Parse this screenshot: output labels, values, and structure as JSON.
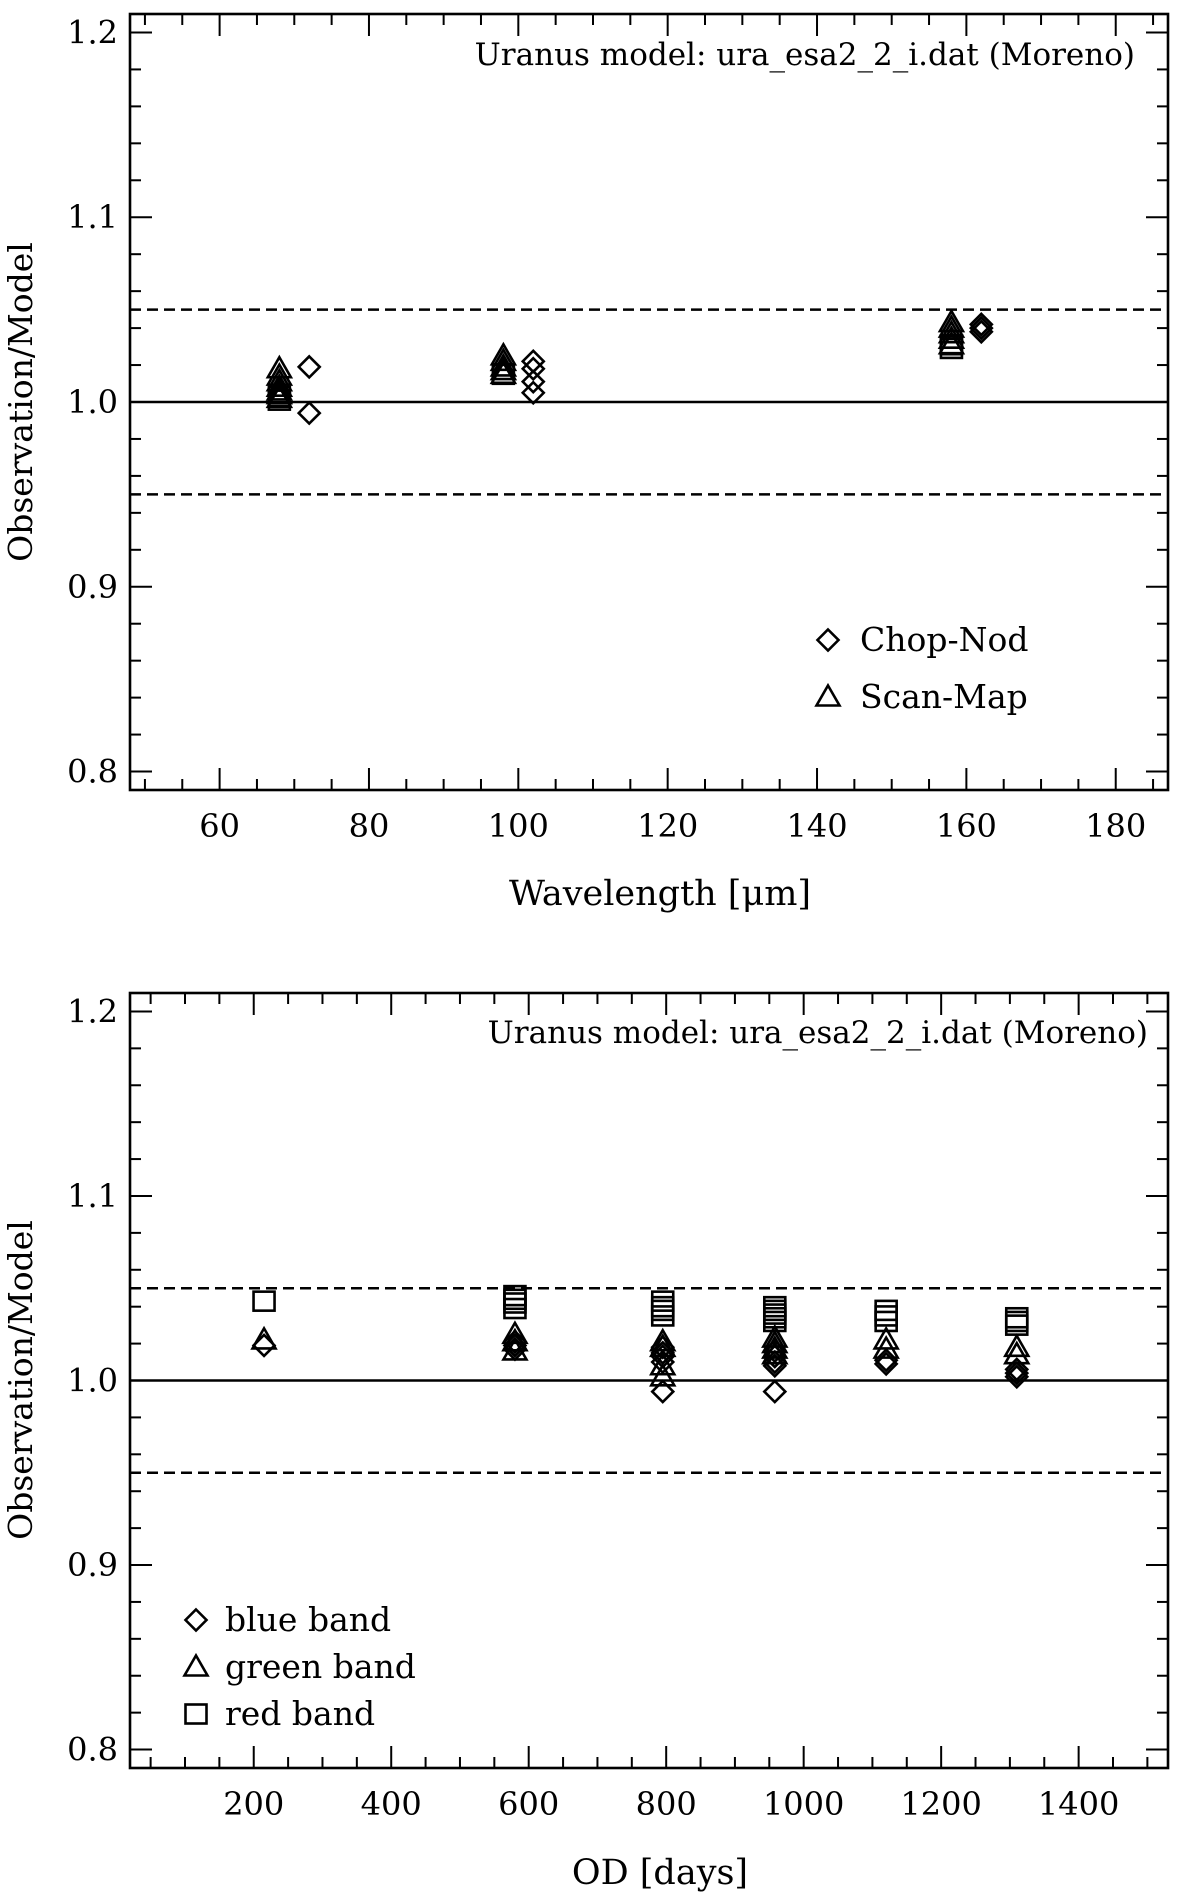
{
  "chart_data": [
    {
      "type": "scatter",
      "annotation": "Uranus model: ura_esa2_2_i.dat (Moreno)",
      "xlabel": "Wavelength [μm]",
      "ylabel": "Observation/Model",
      "xlim": [
        48,
        187
      ],
      "ylim": [
        0.79,
        1.21
      ],
      "xticks": [
        60,
        80,
        100,
        120,
        140,
        160,
        180
      ],
      "xtick_labels": [
        "60",
        "80",
        "100",
        "120",
        "140",
        "160",
        "180"
      ],
      "yticks": [
        0.8,
        0.9,
        1.0,
        1.1,
        1.2
      ],
      "ytick_labels": [
        "0.8",
        "0.9",
        "1.0",
        "1.1",
        "1.2"
      ],
      "hlines": [
        {
          "y": 1.0,
          "style": "solid"
        },
        {
          "y": 1.05,
          "style": "dashed"
        },
        {
          "y": 0.95,
          "style": "dashed"
        }
      ],
      "legend": {
        "placement": "lower-right",
        "entries": [
          {
            "label": "Chop-Nod",
            "marker": "diamond"
          },
          {
            "label": "Scan-Map",
            "marker": "triangle"
          }
        ]
      },
      "series": [
        {
          "name": "Chop-Nod",
          "marker": "diamond",
          "x": [
            72,
            72,
            102,
            102,
            102,
            102,
            162,
            162,
            162
          ],
          "y": [
            1.019,
            0.994,
            1.022,
            1.018,
            1.011,
            1.005,
            1.042,
            1.04,
            1.038
          ]
        },
        {
          "name": "Scan-Map",
          "marker": "triangle",
          "x": [
            68,
            68,
            68,
            68,
            68,
            68,
            68,
            98,
            98,
            98,
            98,
            98,
            158,
            158,
            158,
            158,
            158
          ],
          "y": [
            1.018,
            1.014,
            1.011,
            1.008,
            1.006,
            1.004,
            1.002,
            1.025,
            1.022,
            1.019,
            1.017,
            1.015,
            1.043,
            1.04,
            1.037,
            1.034,
            1.031
          ]
        },
        {
          "name": "",
          "marker": "square",
          "x": [
            68,
            68,
            98,
            158,
            158
          ],
          "y": [
            1.001,
            1.003,
            1.015,
            1.029,
            1.031
          ]
        }
      ]
    },
    {
      "type": "scatter",
      "annotation": "Uranus model: ura_esa2_2_i.dat (Moreno)",
      "xlabel": "OD [days]",
      "ylabel": "Observation/Model",
      "xlim": [
        20,
        1530
      ],
      "ylim": [
        0.79,
        1.21
      ],
      "xticks": [
        200,
        400,
        600,
        800,
        1000,
        1200,
        1400
      ],
      "xtick_labels": [
        "200",
        "400",
        "600",
        "800",
        "1000",
        "1200",
        "1400"
      ],
      "yticks": [
        0.8,
        0.9,
        1.0,
        1.1,
        1.2
      ],
      "ytick_labels": [
        "0.8",
        "0.9",
        "1.0",
        "1.1",
        "1.2"
      ],
      "hlines": [
        {
          "y": 1.0,
          "style": "solid"
        },
        {
          "y": 1.05,
          "style": "dashed"
        },
        {
          "y": 0.95,
          "style": "dashed"
        }
      ],
      "legend": {
        "placement": "lower-left",
        "entries": [
          {
            "label": "blue band",
            "marker": "diamond"
          },
          {
            "label": "green band",
            "marker": "triangle"
          },
          {
            "label": "red band",
            "marker": "square"
          }
        ]
      },
      "series": [
        {
          "name": "blue band",
          "marker": "diamond",
          "x": [
            215,
            580,
            580,
            580,
            795,
            795,
            795,
            795,
            795,
            958,
            958,
            958,
            958,
            958,
            1120,
            1120,
            1310,
            1310,
            1310
          ],
          "y": [
            1.019,
            1.021,
            1.019,
            1.017,
            1.018,
            1.015,
            1.013,
            1.01,
            0.994,
            1.016,
            1.013,
            1.01,
            1.008,
            0.994,
            1.011,
            1.009,
            1.006,
            1.004,
            1.002
          ]
        },
        {
          "name": "green band",
          "marker": "triangle",
          "x": [
            215,
            580,
            580,
            580,
            795,
            795,
            795,
            795,
            958,
            958,
            958,
            958,
            1120,
            1120,
            1310,
            1310
          ],
          "y": [
            1.022,
            1.025,
            1.021,
            1.016,
            1.021,
            1.018,
            1.008,
            1.002,
            1.023,
            1.02,
            1.017,
            1.014,
            1.022,
            1.017,
            1.018,
            1.014
          ]
        },
        {
          "name": "red band",
          "marker": "square",
          "x": [
            215,
            580,
            580,
            580,
            580,
            795,
            795,
            795,
            795,
            958,
            958,
            958,
            958,
            958,
            1120,
            1120,
            1120,
            1310,
            1310,
            1310
          ],
          "y": [
            1.043,
            1.046,
            1.044,
            1.042,
            1.039,
            1.043,
            1.04,
            1.038,
            1.035,
            1.04,
            1.038,
            1.036,
            1.034,
            1.032,
            1.038,
            1.035,
            1.032,
            1.034,
            1.032,
            1.03
          ]
        }
      ]
    }
  ]
}
